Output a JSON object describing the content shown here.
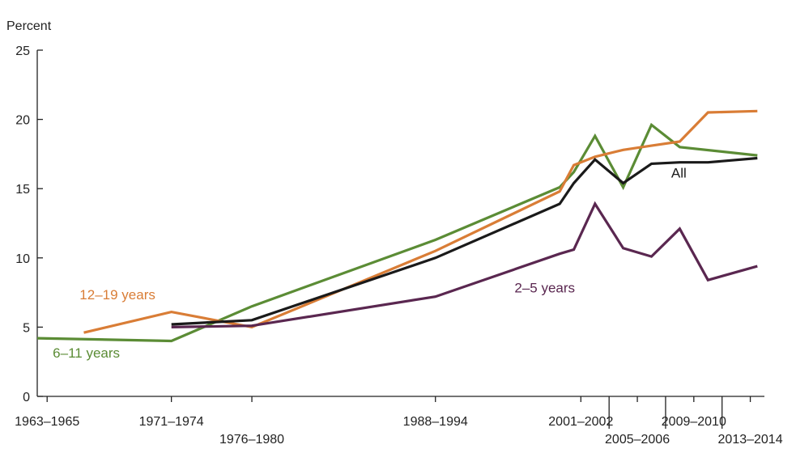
{
  "chart_data": {
    "type": "line",
    "ylabel": "Percent",
    "ylim": [
      0,
      25
    ],
    "yticks": [
      0,
      5,
      10,
      15,
      20,
      25
    ],
    "xlim": [
      1963,
      2014.5
    ],
    "x_tick_labels": [
      {
        "label": "1963–1965",
        "year": 1963.7,
        "row": 0
      },
      {
        "label": "1971–1974",
        "year": 1972.5,
        "row": 0
      },
      {
        "label": "1976–1980",
        "year": 1978.2,
        "row": 1
      },
      {
        "label": "1988–1994",
        "year": 1991.2,
        "row": 0
      },
      {
        "label": "2001–2002",
        "year": 2001.5,
        "row": 0
      },
      {
        "label": "2005–2006",
        "year": 2005.5,
        "row": 1
      },
      {
        "label": "2009–2010",
        "year": 2009.5,
        "row": 0
      },
      {
        "label": "2013–2014",
        "year": 2013.5,
        "row": 1
      }
    ],
    "minor_ticks": [
      2003.5,
      2007.5,
      2011.5
    ],
    "series": [
      {
        "name": "6–11 years",
        "color": "#5b8c35",
        "points": [
          [
            1963.0,
            4.2
          ],
          [
            1972.5,
            4.0
          ],
          [
            1978.2,
            6.5
          ],
          [
            1991.2,
            11.3
          ],
          [
            2000.0,
            15.1
          ],
          [
            2001.0,
            16.2
          ],
          [
            2002.5,
            18.8
          ],
          [
            2004.5,
            15.1
          ],
          [
            2006.5,
            19.6
          ],
          [
            2008.5,
            18.0
          ],
          [
            2014.0,
            17.4
          ]
        ]
      },
      {
        "name": "12–19 years",
        "color": "#d97d36",
        "points": [
          [
            1966.3,
            4.6
          ],
          [
            1972.5,
            6.1
          ],
          [
            1978.2,
            5.0
          ],
          [
            1991.2,
            10.5
          ],
          [
            2000.0,
            14.8
          ],
          [
            2001.0,
            16.7
          ],
          [
            2002.5,
            17.3
          ],
          [
            2004.5,
            17.8
          ],
          [
            2006.5,
            18.1
          ],
          [
            2008.5,
            18.4
          ],
          [
            2010.5,
            20.5
          ],
          [
            2014.0,
            20.6
          ]
        ]
      },
      {
        "name": "2–5 years",
        "color": "#5a2750",
        "points": [
          [
            1972.5,
            5.0
          ],
          [
            1978.2,
            5.1
          ],
          [
            1991.2,
            7.2
          ],
          [
            2000.0,
            10.3
          ],
          [
            2001.0,
            10.6
          ],
          [
            2002.5,
            13.9
          ],
          [
            2004.5,
            10.7
          ],
          [
            2006.5,
            10.1
          ],
          [
            2008.5,
            12.1
          ],
          [
            2010.5,
            8.4
          ],
          [
            2014.0,
            9.4
          ]
        ]
      },
      {
        "name": "All",
        "color": "#1a1a1a",
        "points": [
          [
            1972.5,
            5.2
          ],
          [
            1978.2,
            5.5
          ],
          [
            1991.2,
            10.0
          ],
          [
            2000.0,
            13.9
          ],
          [
            2001.0,
            15.4
          ],
          [
            2002.5,
            17.1
          ],
          [
            2004.5,
            15.4
          ],
          [
            2006.5,
            16.8
          ],
          [
            2008.5,
            16.9
          ],
          [
            2010.5,
            16.9
          ],
          [
            2014.0,
            17.2
          ]
        ]
      }
    ],
    "series_labels": [
      {
        "text": "12–19 years",
        "color": "#d97d36",
        "year": 1966.0,
        "value": 7.0
      },
      {
        "text": "6–11 years",
        "color": "#5b8c35",
        "year": 1964.1,
        "value": 2.8
      },
      {
        "text": "2–5 years",
        "color": "#5a2750",
        "year": 1996.8,
        "value": 7.5
      },
      {
        "text": "All",
        "color": "#1a1a1a",
        "year": 2007.9,
        "value": 15.8
      }
    ]
  }
}
